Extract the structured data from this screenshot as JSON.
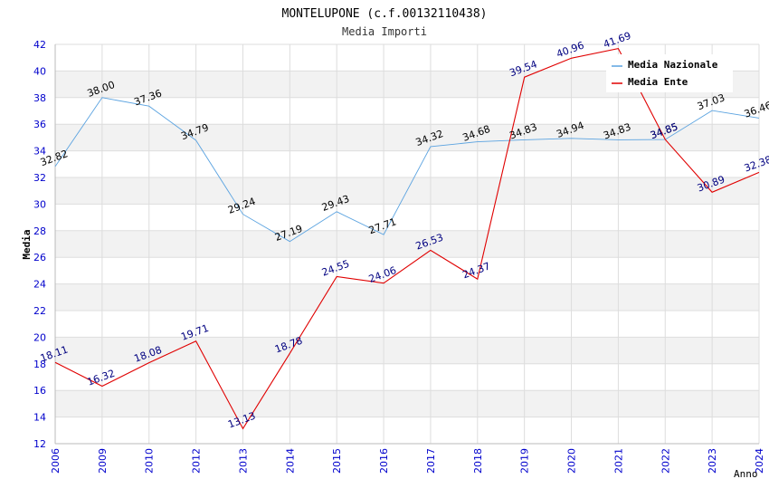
{
  "chart_data": {
    "type": "line",
    "title": "MONTELUPONE (c.f.00132110438)",
    "subtitle": "Media Importi",
    "xlabel": "Anno",
    "ylabel": "Media",
    "ylim": [
      12,
      42
    ],
    "ytick_step": 2,
    "categories": [
      "2006",
      "2009",
      "2010",
      "2012",
      "2013",
      "2014",
      "2015",
      "2016",
      "2017",
      "2018",
      "2019",
      "2020",
      "2021",
      "2022",
      "2023",
      "2024"
    ],
    "legend_position": "top-right",
    "series": [
      {
        "name": "Media Nazionale",
        "color": "#5ba3e0",
        "label_color": "#000000",
        "values": [
          32.82,
          38.0,
          37.36,
          34.79,
          29.24,
          27.19,
          29.43,
          27.71,
          34.32,
          34.68,
          34.83,
          34.94,
          34.83,
          34.85,
          37.03,
          36.46
        ],
        "labels": [
          "32.82",
          "38.00",
          "37.36",
          "34.79",
          "29.24",
          "27.19",
          "29.43",
          "27.71",
          "34.32",
          "34.68",
          "34.83",
          "34.94",
          "34.83",
          "34.85",
          "37.03",
          "36.46"
        ]
      },
      {
        "name": "Media Ente",
        "color": "#e00000",
        "label_color": "#000080",
        "values": [
          18.11,
          16.32,
          18.08,
          19.71,
          13.13,
          18.78,
          24.55,
          24.06,
          26.53,
          24.37,
          39.54,
          40.96,
          41.69,
          34.85,
          30.89,
          32.38
        ],
        "labels": [
          "18.11",
          "16.32",
          "18.08",
          "19.71",
          "13.13",
          "18.78",
          "24.55",
          "24.06",
          "26.53",
          "24.37",
          "39.54",
          "40.96",
          "41.69",
          "34.85",
          "30.89",
          "32.38"
        ]
      }
    ],
    "colors": {
      "axis_text": "#0000cc",
      "band": "#f2f2f2",
      "grid": "#dddddd"
    }
  }
}
